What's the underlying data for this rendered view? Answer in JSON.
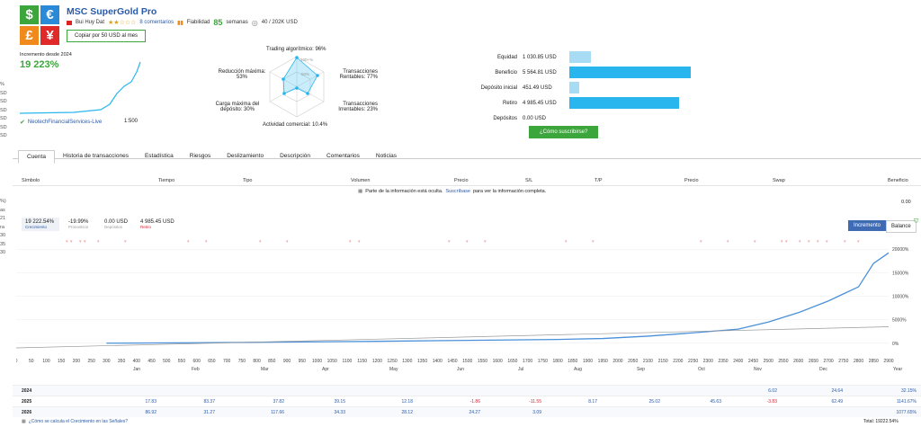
{
  "header": {
    "title": "MSC SuperGold Pro",
    "author": "Bui Huy Dat",
    "comments": "8 comentarios",
    "reliability": "Fiabilidad",
    "weeks_num": "85",
    "weeks_label": "semanas",
    "subscribers": "40 / 202K USD",
    "copy_button": "Copiar por 50 USD al mes"
  },
  "logo": {
    "dollar": "$",
    "euro": "€",
    "pound": "£",
    "yen": "¥"
  },
  "growth": {
    "label": "Incremento desde 2024",
    "value": "19 223%",
    "broker": "NeotechFinancialServices-Live",
    "leverage": "1:500"
  },
  "left_cut": [
    "%",
    "SD",
    "SD",
    "SD",
    "SD",
    "SD",
    "SD"
  ],
  "left_cut2": [
    "%)",
    "as",
    "21",
    "ra",
    "30",
    "35",
    "30"
  ],
  "radar": {
    "top": "Trading algorítmico: 96%",
    "right_top": "Transacciones Rentables: 77%",
    "right_bottom": "Transacciones Irrentables: 23%",
    "bottom": "Actividad comercial: 10.4%",
    "left_bottom": "Carga máxima del depósito: 30%",
    "left_top": "Reducción máxima: 53%",
    "center_label": "100+%",
    "mid_label": "50%"
  },
  "account": {
    "rows": [
      {
        "label": "Equidad",
        "value": "1 030.85 USD",
        "fill": 0.18,
        "color": "#a8dcf5"
      },
      {
        "label": "Beneficio",
        "value": "5 564.81 USD",
        "fill": 1.0,
        "color": "#29b6ee"
      },
      {
        "label": "Depósito inicial",
        "value": "451.49 USD",
        "fill": 0.08,
        "color": "#a8dcf5"
      },
      {
        "label": "Retiro",
        "value": "4 985.45 USD",
        "fill": 0.9,
        "color": "#29b6ee"
      },
      {
        "label": "Depósitos",
        "value": "0.00 USD",
        "fill": 0,
        "color": "#29b6ee"
      }
    ],
    "subscribe": "¿Cómo suscribirse?"
  },
  "tabs": [
    "Cuenta",
    "Historia de transacciones",
    "Estadística",
    "Riesgos",
    "Deslizamiento",
    "Descripción",
    "Comentarios",
    "Noticias"
  ],
  "table": {
    "headers": [
      "Símbolo",
      "Tiempo",
      "Tipo",
      "Volumen",
      "Precio",
      "S/L",
      "T/P",
      "Precio",
      "Swap",
      "Beneficio"
    ],
    "notice_pre": "Parte de la información está oculta.",
    "notice_link": "Suscríbase",
    "notice_post": "para ver la información completa.",
    "total": "0.00"
  },
  "chart_summary": {
    "growth": "19 222.54%",
    "growth_label": "Crecimiento",
    "drawdown": "-19.99%",
    "drawdown_label": "Pronosticio",
    "deposits": "0.00 USD",
    "deposits_label": "Depósitos",
    "withdrawals": "4 985.45 USD",
    "withdrawals_label": "Retiro",
    "btn_growth": "Incremento",
    "btn_balance": "Balance"
  },
  "chart_data": {
    "type": "line",
    "x_ticks": [
      "0",
      "50",
      "100",
      "150",
      "200",
      "250",
      "300",
      "350",
      "400",
      "450",
      "500",
      "550",
      "600",
      "650",
      "700",
      "750",
      "800",
      "850",
      "900",
      "950",
      "1000",
      "1050",
      "1100",
      "1150",
      "1200",
      "1250",
      "1300",
      "1350",
      "1400",
      "1450",
      "1500",
      "1550",
      "1600",
      "1650",
      "1700",
      "1750",
      "1800",
      "1850",
      "1900",
      "1950",
      "2000",
      "2050",
      "2100",
      "2150",
      "2200",
      "2250",
      "2300",
      "2350",
      "2400",
      "2450",
      "2500",
      "2550",
      "2600",
      "2650",
      "2700",
      "2750",
      "2800",
      "2850",
      "2900"
    ],
    "months": [
      "Jan",
      "Feb",
      "Mar",
      "Apr",
      "May",
      "Jun",
      "Jul",
      "Aug",
      "Sep",
      "Oct",
      "Nov",
      "Dec",
      "Year"
    ],
    "y_ticks": [
      "20000%",
      "15000%",
      "10000%",
      "5000%",
      "0%"
    ],
    "ylim": [
      -1000,
      21000
    ],
    "xlim": [
      0,
      2900
    ],
    "series": [
      {
        "values": [
          [
            300,
            0
          ],
          [
            600,
            100
          ],
          [
            900,
            250
          ],
          [
            1200,
            400
          ],
          [
            1500,
            600
          ],
          [
            1800,
            800
          ],
          [
            1950,
            1000
          ],
          [
            2100,
            1500
          ],
          [
            2250,
            2200
          ],
          [
            2400,
            3000
          ],
          [
            2500,
            4500
          ],
          [
            2600,
            6500
          ],
          [
            2700,
            9000
          ],
          [
            2750,
            10500
          ],
          [
            2800,
            12000
          ],
          [
            2850,
            17000
          ],
          [
            2900,
            19222
          ]
        ]
      },
      {
        "values": [
          [
            0,
            -1000
          ],
          [
            2900,
            3500
          ]
        ]
      }
    ]
  },
  "years": [
    {
      "year": "2024",
      "values": [
        "",
        "",
        "",
        "",
        "",
        "",
        "",
        "",
        "",
        "",
        "6.02",
        "24.64",
        "32.15%"
      ]
    },
    {
      "year": "2025",
      "values": [
        "17.83",
        "83.37",
        "37.82",
        "39.15",
        "12.18",
        "-1.86",
        "-11.55",
        "8.17",
        "25.02",
        "45.63",
        "-3.83",
        "62.49",
        "1141.67%"
      ]
    },
    {
      "year": "2026",
      "values": [
        "86.92",
        "31.27",
        "117.66",
        "34.33",
        "28.12",
        "24.27",
        "3.09",
        "",
        "",
        "",
        "",
        "",
        "1077.65%"
      ]
    }
  ],
  "footer": {
    "link": "¿Cómo se calcula el Crecimiento en las Señales?",
    "total": "Total: 19222.54%"
  }
}
